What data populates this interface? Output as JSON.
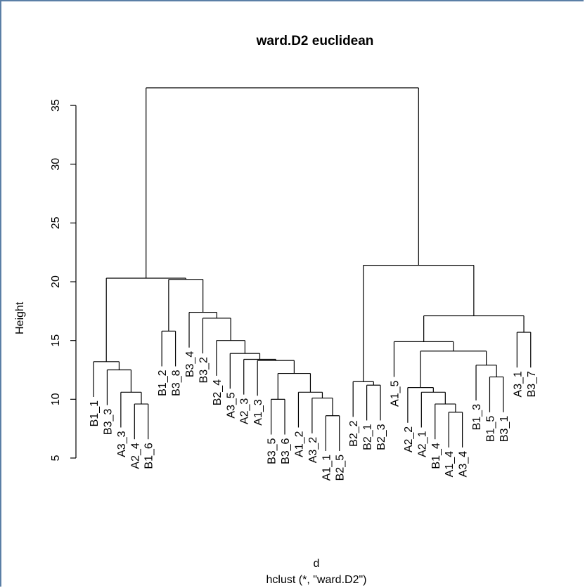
{
  "chart_data": {
    "type": "dendrogram",
    "title": "ward.D2 euclidean",
    "xlabel": "d",
    "sub": "hclust (*, \"ward.D2\")",
    "ylabel": "Height",
    "ylim": [
      5,
      36.5
    ],
    "yticks": [
      5,
      10,
      15,
      20,
      25,
      30,
      35
    ],
    "labels": [
      "B1_1",
      "B3_3",
      "A3_3",
      "A2_4",
      "B1_6",
      "B1_2",
      "B3_8",
      "B3_4",
      "B3_2",
      "B2_4",
      "A3_5",
      "A2_3",
      "A1_3",
      "B3_5",
      "B3_6",
      "A1_2",
      "A3_2",
      "A1_1",
      "B2_5",
      "B2_2",
      "B2_1",
      "B2_3",
      "A1_5",
      "A2_2",
      "A2_1",
      "B1_4",
      "A1_4",
      "A3_4",
      "B1_3",
      "B1_5",
      "B3_1",
      "A3_1",
      "B3_7"
    ],
    "merges": [
      {
        "left": "A1_1",
        "right": "B2_5",
        "height": 8.6
      },
      {
        "left": "A1_4",
        "right": "A3_4",
        "height": 8.9
      },
      {
        "left": "A2_4",
        "right": "B1_6",
        "height": 9.6
      },
      {
        "left": "B1_4",
        "right": "A1_4+A3_4",
        "height": 9.6
      },
      {
        "left": "B3_5",
        "right": "B3_6",
        "height": 10.0
      },
      {
        "left": "A3_2",
        "right": "A1_1+B2_5",
        "height": 10.1
      },
      {
        "left": "A3_3",
        "right": "A2_4+B1_6",
        "height": 10.6
      },
      {
        "left": "A2_1",
        "right": "B1_4+A1_4+A3_4",
        "height": 10.6
      },
      {
        "left": "A1_2",
        "right": "A3_2+A1_1+B2_5",
        "height": 10.6
      },
      {
        "left": "A2_2",
        "right": "A2_1+B1_4+A1_4+A3_4",
        "height": 11.0
      },
      {
        "left": "B2_1",
        "right": "B2_3",
        "height": 11.2
      },
      {
        "left": "B2_2",
        "right": "B2_1+B2_3",
        "height": 11.5
      },
      {
        "left": "B1_5",
        "right": "B3_1",
        "height": 11.9
      },
      {
        "left": "B3_5+B3_6",
        "right": "A1_2+A3_2+A1_1+B2_5",
        "height": 12.2
      },
      {
        "left": "B3_3",
        "right": "A3_3+A2_4+B1_6",
        "height": 12.5
      },
      {
        "left": "B1_3",
        "right": "B1_5+B3_1",
        "height": 12.9
      },
      {
        "left": "B1_1",
        "right": "B3_3+A3_3+A2_4+B1_6",
        "height": 13.2
      },
      {
        "left": "A1_3",
        "right": "B3_5+B3_6+A1_2+A3_2+A1_1+B2_5",
        "height": 13.3
      },
      {
        "left": "A2_3",
        "right": "A1_3+B3_5+B3_6+A1_2+A3_2+A1_1+B2_5",
        "height": 13.4
      },
      {
        "left": "A3_5",
        "right": "A2_3+A1_3+B3_5+B3_6+A1_2+A3_2+A1_1+B2_5",
        "height": 13.9
      },
      {
        "left": "A2_2+A2_1+B1_4+A1_4+A3_4",
        "right": "B1_3+B1_5+B3_1",
        "height": 14.1
      },
      {
        "left": "A1_5",
        "right": "A2_2+A2_1+B1_4+A1_4+A3_4+B1_3+B1_5+B3_1",
        "height": 14.9
      },
      {
        "left": "B2_4",
        "right": "A3_5+A2_3+A1_3+B3_5+B3_6+A1_2+A3_2+A1_1+B2_5",
        "height": 15.0
      },
      {
        "left": "A3_1",
        "right": "B3_7",
        "height": 15.7
      },
      {
        "left": "B1_2",
        "right": "B3_8",
        "height": 15.8
      },
      {
        "left": "B3_2",
        "right": "B2_4+A3_5+A2_3+A1_3+B3_5+B3_6+A1_2+A3_2+A1_1+B2_5",
        "height": 16.9
      },
      {
        "left": "A1_5+A2_2+A2_1+B1_4+A1_4+A3_4+B1_3+B1_5+B3_1",
        "right": "A3_1+B3_7",
        "height": 17.1
      },
      {
        "left": "B3_4",
        "right": "B3_2+B2_4+A3_5+A2_3+A1_3+B3_5+B3_6+A1_2+A3_2+A1_1+B2_5",
        "height": 17.4
      },
      {
        "left": "B1_2+B3_8",
        "right": "B3_4+B3_2+B2_4+A3_5+A2_3+A1_3+B3_5+B3_6+A1_2+A3_2+A1_1+B2_5",
        "height": 20.2
      },
      {
        "left": "B2_2+B2_1+B2_3",
        "right": "A1_5+A2_2+A2_1+B1_4+A1_4+A3_4+B1_3+B1_5+B3_1+A3_1+B3_7",
        "height": 21.4
      },
      {
        "left": "B1_1+B3_3+A3_3+A2_4+B1_6",
        "right": "B1_2+B3_8+B3_4+B3_2+B2_4+A3_5+A2_3+A1_3+B3_5+B3_6+A1_2+A3_2+A1_1+B2_5",
        "height": 20.3
      },
      {
        "left": "B1_1+B3_3+A3_3+A2_4+B1_6+B1_2+B3_8+B3_4+B3_2+B2_4+A3_5+A2_3+A1_3+B3_5+B3_6+A1_2+A3_2+A1_1+B2_5",
        "right": "B2_2+B2_1+B2_3+A1_5+A2_2+A2_1+B1_4+A1_4+A3_4+B1_3+B1_5+B3_1+A3_1+B3_7",
        "height": 36.5
      }
    ]
  }
}
